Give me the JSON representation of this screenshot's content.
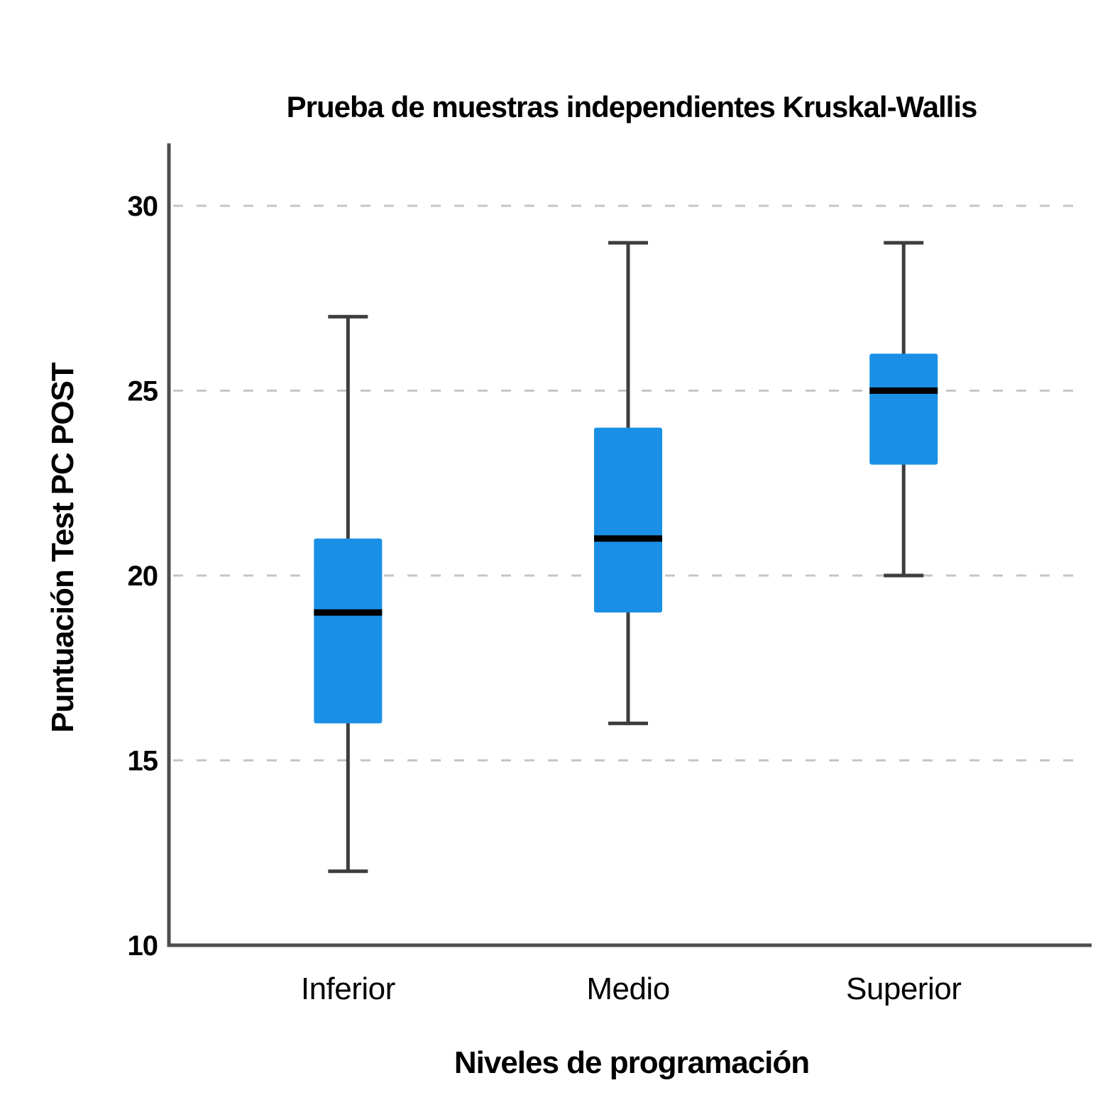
{
  "chart_data": {
    "type": "boxplot",
    "title": "Prueba de muestras independientes Kruskal-Wallis",
    "xlabel": "Niveles de programación",
    "ylabel": "Puntuación Test PC POST",
    "categories": [
      "Inferior",
      "Medio",
      "Superior"
    ],
    "series": [
      {
        "name": "Inferior",
        "whisker_low": 12,
        "q1": 16,
        "median": 19,
        "q3": 21,
        "whisker_high": 27
      },
      {
        "name": "Medio",
        "whisker_low": 16,
        "q1": 19,
        "median": 21,
        "q3": 24,
        "whisker_high": 29
      },
      {
        "name": "Superior",
        "whisker_low": 20,
        "q1": 23,
        "median": 25,
        "q3": 26,
        "whisker_high": 29
      }
    ],
    "yticks": [
      30,
      25,
      20,
      15,
      10
    ],
    "ylim": [
      10,
      31.7
    ],
    "grid": {
      "horizontal_dashed_at": [
        30,
        25,
        20,
        15
      ]
    },
    "legend": "none",
    "colors": {
      "box_fill": "#1990E6",
      "median_line": "#000000",
      "whisker": "#3D3D3D",
      "axis": "#4D4D4D",
      "gridline": "#C6C6C6",
      "background": "#FFFFFF",
      "text": "#000000"
    }
  }
}
